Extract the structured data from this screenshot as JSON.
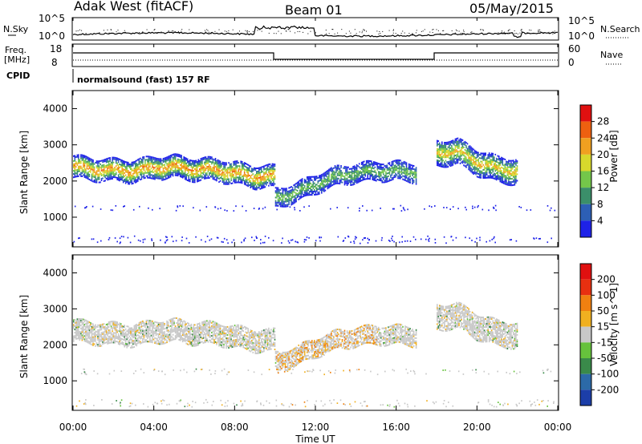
{
  "header": {
    "station": "Adak West (fitACF)",
    "beam": "Beam 01",
    "date": "05/May/2015"
  },
  "top_panels": {
    "noise": {
      "left_label": "N.Sky",
      "right_label": "N.Search",
      "left_ticks": [
        "10^5",
        "10^0"
      ],
      "right_ticks": [
        "10^5",
        "10^0"
      ]
    },
    "freq": {
      "left_label_1": "Freq.",
      "left_label_2": "[MHz]",
      "right_label": "Nave",
      "left_ticks": [
        "18",
        "8"
      ],
      "right_ticks": [
        "60",
        "0"
      ]
    },
    "cpid": {
      "label": "CPID",
      "text": "normalsound (fast) 157 RF"
    }
  },
  "x_axis": {
    "label": "Time UT",
    "ticks": [
      "00:00",
      "04:00",
      "08:00",
      "12:00",
      "16:00",
      "20:00",
      "00:00"
    ]
  },
  "chart_data": [
    {
      "type": "heatmap",
      "title": "",
      "ylabel": "Slant Range [km]",
      "y_ticks": [
        "1000",
        "2000",
        "3000",
        "4000"
      ],
      "ylim": [
        180,
        4500
      ],
      "xlabel": "Time UT",
      "xlim": [
        "00:00",
        "24:00"
      ],
      "colorbar_label": "Power [dB]",
      "colorbar_ticks": [
        "4",
        "8",
        "12",
        "16",
        "20",
        "24",
        "28"
      ],
      "colors": [
        "#1e22e8",
        "#2d5fb5",
        "#3b8f6a",
        "#74c74a",
        "#d8d82c",
        "#f0a020",
        "#ee6010",
        "#e01010"
      ],
      "bands": [
        {
          "name": "main",
          "times": [
            0,
            1,
            2,
            3,
            4,
            5,
            6,
            7,
            8,
            9,
            10
          ],
          "ranges": [
            2380,
            2300,
            2280,
            2250,
            2350,
            2380,
            2300,
            2300,
            2200,
            2100,
            2100
          ],
          "width": 300,
          "peak_db": 24
        },
        {
          "name": "afternoon",
          "times": [
            10,
            11,
            12,
            13,
            14,
            15,
            16,
            17
          ],
          "ranges": [
            1500,
            1650,
            1900,
            2100,
            2200,
            2250,
            2250,
            2200
          ],
          "width": 250,
          "peak_db": 14
        },
        {
          "name": "evening",
          "times": [
            18,
            19,
            20,
            21,
            22
          ],
          "ranges": [
            2750,
            2800,
            2500,
            2300,
            2250
          ],
          "width": 350,
          "peak_db": 20
        }
      ]
    },
    {
      "type": "heatmap",
      "title": "",
      "ylabel": "Slant Range [km]",
      "y_ticks": [
        "1000",
        "2000",
        "3000",
        "4000"
      ],
      "ylim": [
        180,
        4500
      ],
      "xlabel": "Time UT",
      "xlim": [
        "00:00",
        "24:00"
      ],
      "colorbar_label": "Velocity [m s^-1]",
      "colorbar_ticks": [
        "200",
        "100",
        "50",
        "15",
        "-15",
        "-50",
        "-100",
        "-200"
      ],
      "colors": [
        "#1c3ea8",
        "#2c6aa8",
        "#3a8a4a",
        "#66c23c",
        "#c8c8c8",
        "#f0b020",
        "#f08010",
        "#e83010",
        "#e01010"
      ],
      "note_velocity_dominant": "-15 to 15"
    }
  ]
}
